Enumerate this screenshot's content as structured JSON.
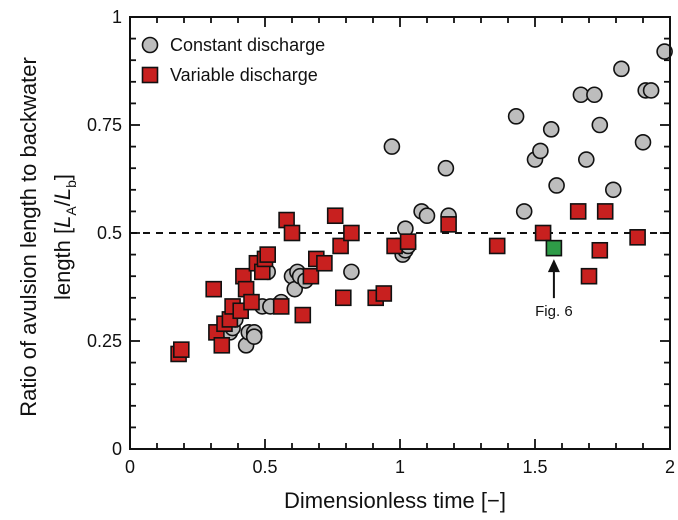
{
  "chart_data": {
    "type": "scatter",
    "title": "",
    "xlabel": "Dimensionless time [−]",
    "ylabel": {
      "line1": "Ratio of avulsion length to backwater",
      "line2_prefix": "length [",
      "line2_a": "L",
      "line2_a_sub": "A",
      "line2_slash": "/",
      "line2_b": "L",
      "line2_b_sub": "b",
      "line2_suffix": "]"
    },
    "xlim": [
      0,
      2
    ],
    "ylim": [
      0,
      1
    ],
    "xticks": [
      {
        "value": 0,
        "label": "0"
      },
      {
        "value": 0.5,
        "label": "0.5"
      },
      {
        "value": 1,
        "label": "1"
      },
      {
        "value": 1.5,
        "label": "1.5"
      },
      {
        "value": 2,
        "label": "2"
      }
    ],
    "yticks": [
      {
        "value": 0,
        "label": "0"
      },
      {
        "value": 0.25,
        "label": "0.25"
      },
      {
        "value": 0.5,
        "label": "0.5"
      },
      {
        "value": 0.75,
        "label": "0.75"
      },
      {
        "value": 1,
        "label": "1"
      }
    ],
    "grid": false,
    "legend_position": "top-left",
    "reference_line": {
      "y": 0.5,
      "style": "dashed"
    },
    "series": [
      {
        "name": "Constant discharge",
        "marker": "circle",
        "color": "#bdbdbd",
        "points": [
          [
            0.37,
            0.27
          ],
          [
            0.38,
            0.28
          ],
          [
            0.39,
            0.3
          ],
          [
            0.43,
            0.24
          ],
          [
            0.44,
            0.27
          ],
          [
            0.46,
            0.27
          ],
          [
            0.46,
            0.26
          ],
          [
            0.49,
            0.33
          ],
          [
            0.51,
            0.41
          ],
          [
            0.52,
            0.33
          ],
          [
            0.56,
            0.34
          ],
          [
            0.6,
            0.4
          ],
          [
            0.61,
            0.37
          ],
          [
            0.62,
            0.41
          ],
          [
            0.63,
            0.4
          ],
          [
            0.65,
            0.39
          ],
          [
            0.82,
            0.41
          ],
          [
            0.97,
            0.7
          ],
          [
            0.99,
            0.47
          ],
          [
            1.01,
            0.45
          ],
          [
            1.02,
            0.46
          ],
          [
            1.02,
            0.51
          ],
          [
            1.03,
            0.47
          ],
          [
            1.08,
            0.55
          ],
          [
            1.1,
            0.54
          ],
          [
            1.17,
            0.65
          ],
          [
            1.18,
            0.54
          ],
          [
            1.43,
            0.77
          ],
          [
            1.46,
            0.55
          ],
          [
            1.5,
            0.67
          ],
          [
            1.52,
            0.69
          ],
          [
            1.56,
            0.74
          ],
          [
            1.58,
            0.61
          ],
          [
            1.67,
            0.82
          ],
          [
            1.69,
            0.67
          ],
          [
            1.72,
            0.82
          ],
          [
            1.74,
            0.75
          ],
          [
            1.79,
            0.6
          ],
          [
            1.82,
            0.88
          ],
          [
            1.9,
            0.71
          ],
          [
            1.91,
            0.83
          ],
          [
            1.93,
            0.83
          ],
          [
            1.98,
            0.92
          ]
        ]
      },
      {
        "name": "Variable discharge",
        "marker": "square",
        "color": "#c8201f",
        "points": [
          [
            0.18,
            0.22
          ],
          [
            0.19,
            0.23
          ],
          [
            0.31,
            0.37
          ],
          [
            0.32,
            0.27
          ],
          [
            0.34,
            0.24
          ],
          [
            0.35,
            0.29
          ],
          [
            0.37,
            0.3
          ],
          [
            0.38,
            0.33
          ],
          [
            0.41,
            0.32
          ],
          [
            0.42,
            0.4
          ],
          [
            0.43,
            0.37
          ],
          [
            0.45,
            0.34
          ],
          [
            0.47,
            0.43
          ],
          [
            0.49,
            0.41
          ],
          [
            0.5,
            0.44
          ],
          [
            0.51,
            0.45
          ],
          [
            0.56,
            0.33
          ],
          [
            0.58,
            0.53
          ],
          [
            0.6,
            0.5
          ],
          [
            0.64,
            0.31
          ],
          [
            0.67,
            0.4
          ],
          [
            0.69,
            0.44
          ],
          [
            0.72,
            0.43
          ],
          [
            0.76,
            0.54
          ],
          [
            0.78,
            0.47
          ],
          [
            0.79,
            0.35
          ],
          [
            0.82,
            0.5
          ],
          [
            0.91,
            0.35
          ],
          [
            0.94,
            0.36
          ],
          [
            0.98,
            0.47
          ],
          [
            1.03,
            0.48
          ],
          [
            1.18,
            0.52
          ],
          [
            1.36,
            0.47
          ],
          [
            1.53,
            0.5
          ],
          [
            1.66,
            0.55
          ],
          [
            1.7,
            0.4
          ],
          [
            1.74,
            0.46
          ],
          [
            1.76,
            0.55
          ],
          [
            1.88,
            0.49
          ]
        ]
      }
    ],
    "highlighted_point": {
      "x": 1.57,
      "y": 0.465,
      "color": "#2e9b47",
      "label": "Fig. 6"
    }
  },
  "colors": {
    "axis": "#111111",
    "circle_fill": "#bdbdbd",
    "square_fill": "#c8201f",
    "highlight_fill": "#2e9b47"
  }
}
